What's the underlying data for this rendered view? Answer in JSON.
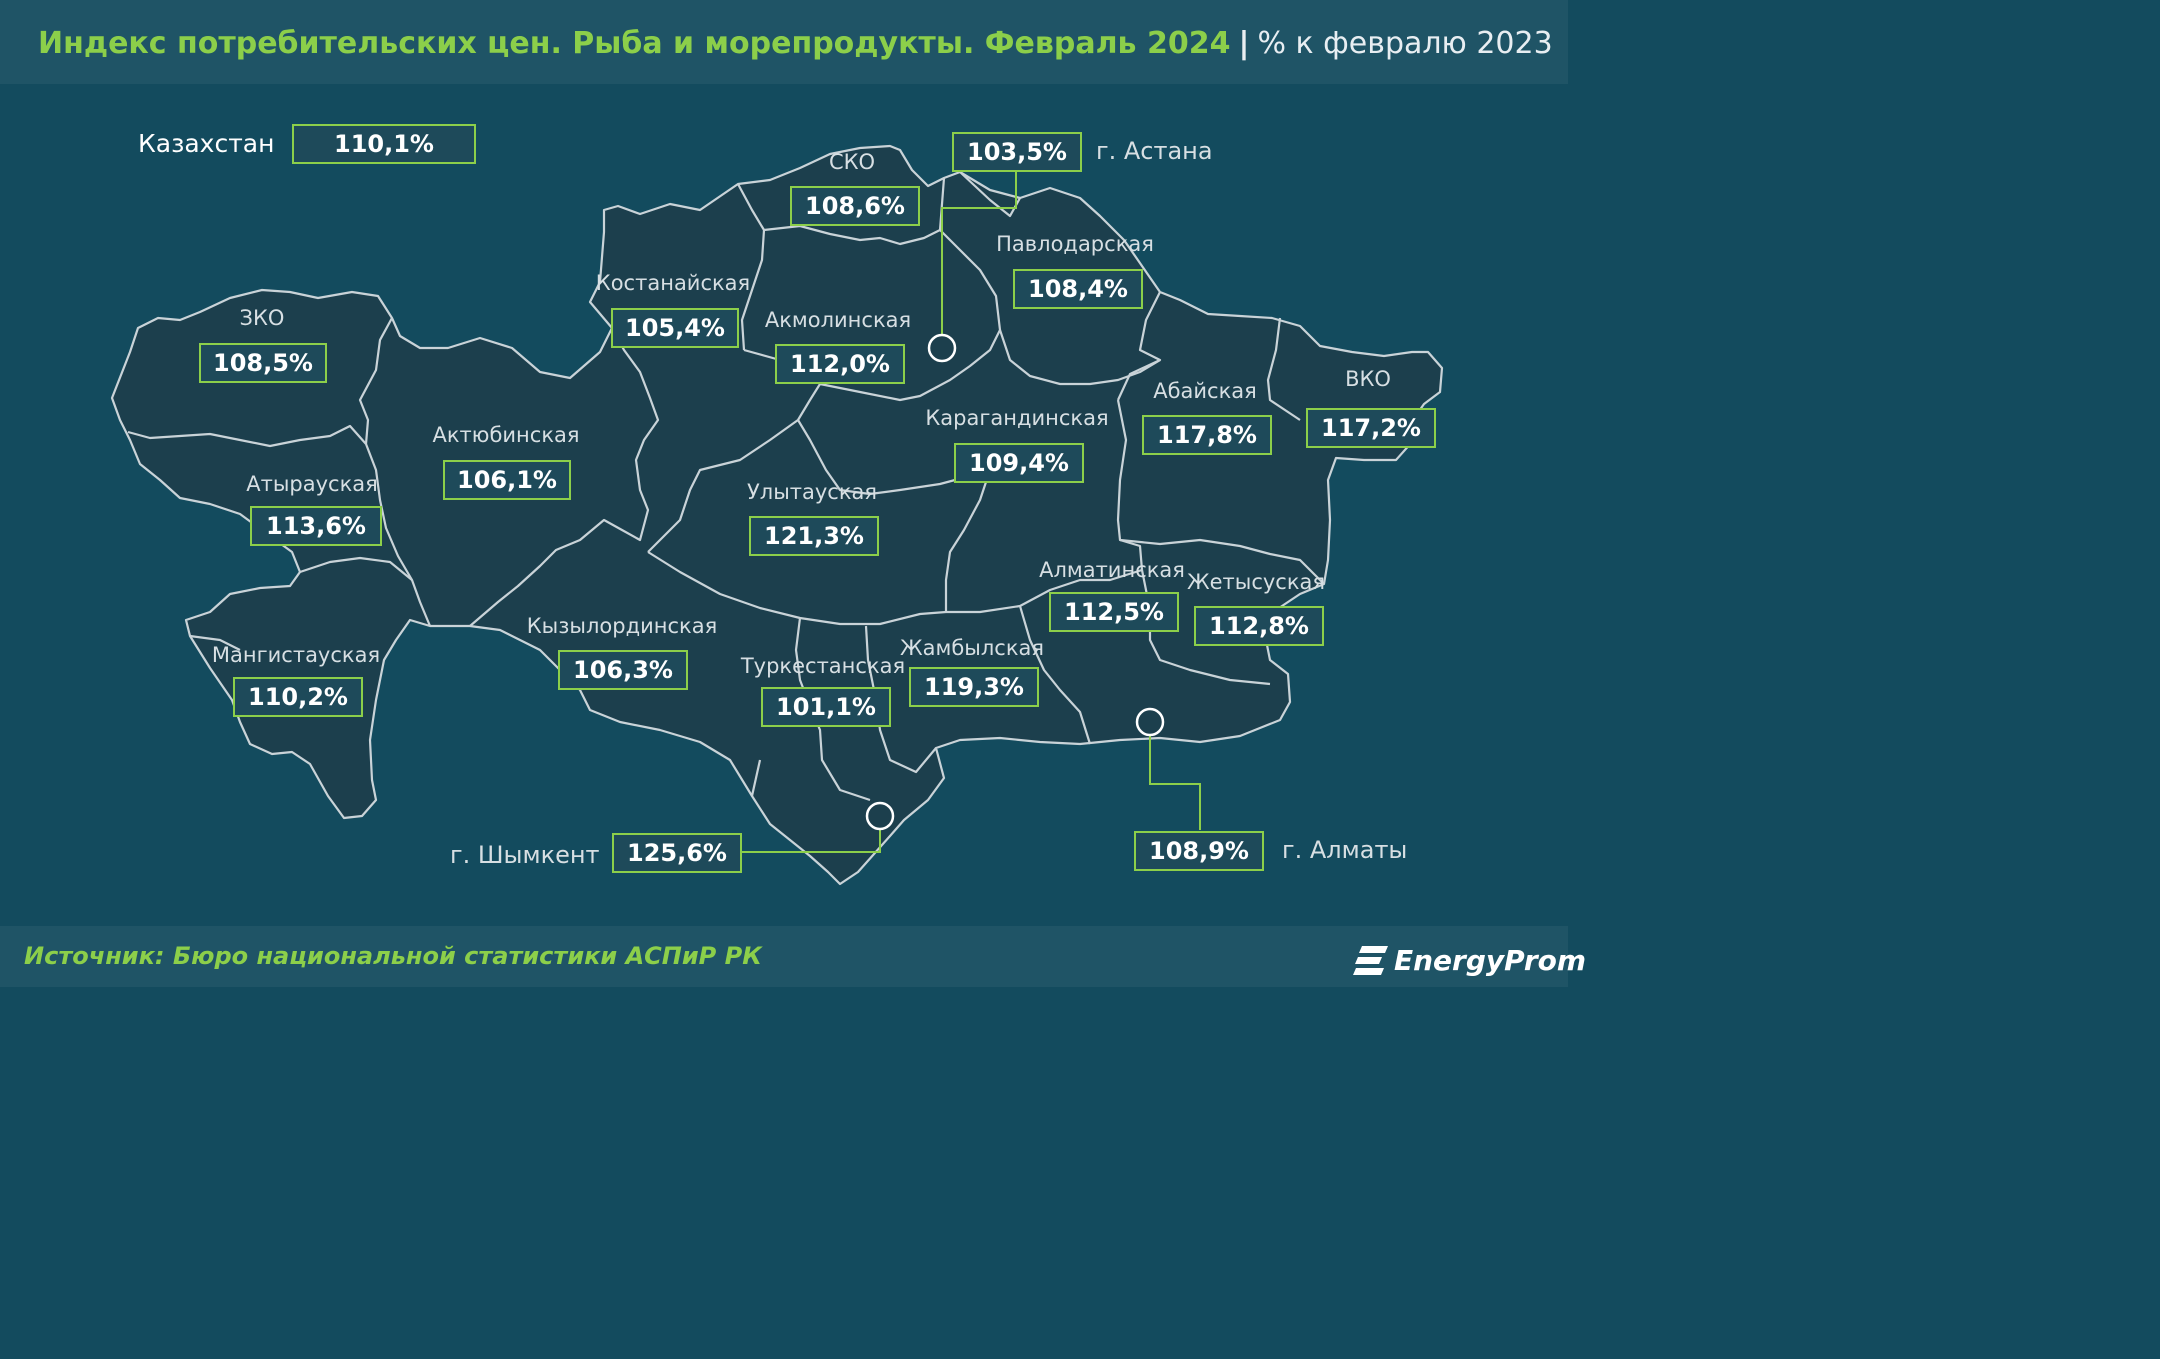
{
  "title": {
    "main": "Индекс потребительских цен. Рыба и морепродукты. Февраль 2024",
    "separator": "|",
    "sub": "% к февралю 2023"
  },
  "country": {
    "name": "Казахстан",
    "value": "110,1%"
  },
  "regions": {
    "zko": {
      "name": "ЗКО",
      "value": "108,5%"
    },
    "atyrau": {
      "name": "Атырауская",
      "value": "113,6%"
    },
    "mangystau": {
      "name": "Мангистауская",
      "value": "110,2%"
    },
    "aktobe": {
      "name": "Актюбинская",
      "value": "106,1%"
    },
    "kostanay": {
      "name": "Костанайская",
      "value": "105,4%"
    },
    "sko": {
      "name": "СКО",
      "value": "108,6%"
    },
    "akmola": {
      "name": "Акмолинская",
      "value": "112,0%"
    },
    "pavlodar": {
      "name": "Павлодарская",
      "value": "108,4%"
    },
    "karaganda": {
      "name": "Карагандинская",
      "value": "109,4%"
    },
    "ulytau": {
      "name": "Улытауская",
      "value": "121,3%"
    },
    "abai": {
      "name": "Абайская",
      "value": "117,8%"
    },
    "vko": {
      "name": "ВКО",
      "value": "117,2%"
    },
    "kyzylorda": {
      "name": "Кызылординская",
      "value": "106,3%"
    },
    "turkestan": {
      "name": "Туркестанская",
      "value": "101,1%"
    },
    "zhambyl": {
      "name": "Жамбылская",
      "value": "119,3%"
    },
    "almaty_reg": {
      "name": "Алматинская",
      "value": "112,5%"
    },
    "zhetysu": {
      "name": "Жетысуская",
      "value": "112,8%"
    }
  },
  "cities": {
    "astana": {
      "name": "г. Астана",
      "value": "103,5%"
    },
    "shymkent": {
      "name": "г. Шымкент",
      "value": "125,6%"
    },
    "almaty": {
      "name": "г. Алматы",
      "value": "108,9%"
    }
  },
  "source": "Источник: Бюро национальной статистики АСПиР РК",
  "logo": {
    "text": "EnergyProm",
    "icon": "energyprom-logo-icon"
  },
  "colors": {
    "background": "#134b5e",
    "band": "#1f5466",
    "region_fill": "#1c3f4d",
    "border": "#c9d3d8",
    "accent": "#8ccf4a",
    "text": "#d7dfe3"
  }
}
